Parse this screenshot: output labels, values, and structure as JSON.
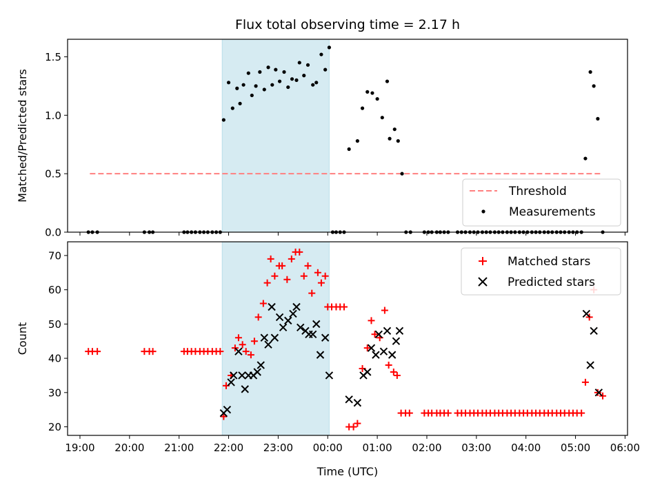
{
  "figure": {
    "title": "Flux total observing time = 2.17 h",
    "xlabel": "Time (UTC)",
    "x_tick_labels": [
      "19:00",
      "20:00",
      "21:00",
      "22:00",
      "23:00",
      "00:00",
      "01:00",
      "02:00",
      "03:00",
      "04:00",
      "05:00",
      "06:00"
    ],
    "shaded_interval_hours": [
      21.87,
      24.03
    ],
    "shade_color": "#add8e6"
  },
  "chart_data": [
    {
      "type": "scatter",
      "name": "ratio-panel",
      "ylabel": "Matched/Predicted stars",
      "ylim": [
        0,
        1.65
      ],
      "y_ticks": [
        0.0,
        0.5,
        1.0,
        1.5
      ],
      "y_tick_labels": [
        "0.0",
        "0.5",
        "1.0",
        "1.5"
      ],
      "xlim_hours": [
        18.75,
        30.05
      ],
      "legend_position": "lower-right",
      "threshold": {
        "label": "Threshold",
        "value": 0.5,
        "x_range_hours": [
          19.2,
          29.55
        ],
        "color": "#ff7f7f"
      },
      "measurements": {
        "label": "Measurements",
        "color": "#000000",
        "points": [
          [
            19.17,
            0
          ],
          [
            19.25,
            0
          ],
          [
            19.35,
            0
          ],
          [
            20.3,
            0
          ],
          [
            20.4,
            0
          ],
          [
            20.47,
            0
          ],
          [
            21.1,
            0
          ],
          [
            21.17,
            0
          ],
          [
            21.25,
            0
          ],
          [
            21.33,
            0
          ],
          [
            21.42,
            0
          ],
          [
            21.5,
            0
          ],
          [
            21.58,
            0
          ],
          [
            21.67,
            0
          ],
          [
            21.75,
            0
          ],
          [
            21.83,
            0
          ],
          [
            21.9,
            0.96
          ],
          [
            22.0,
            1.28
          ],
          [
            22.08,
            1.06
          ],
          [
            22.17,
            1.23
          ],
          [
            22.23,
            1.1
          ],
          [
            22.3,
            1.26
          ],
          [
            22.4,
            1.36
          ],
          [
            22.47,
            1.17
          ],
          [
            22.55,
            1.25
          ],
          [
            22.63,
            1.37
          ],
          [
            22.72,
            1.22
          ],
          [
            22.8,
            1.41
          ],
          [
            22.88,
            1.26
          ],
          [
            22.95,
            1.39
          ],
          [
            23.03,
            1.29
          ],
          [
            23.12,
            1.37
          ],
          [
            23.2,
            1.24
          ],
          [
            23.28,
            1.31
          ],
          [
            23.37,
            1.3
          ],
          [
            23.43,
            1.45
          ],
          [
            23.52,
            1.34
          ],
          [
            23.6,
            1.43
          ],
          [
            23.7,
            1.26
          ],
          [
            23.77,
            1.28
          ],
          [
            23.87,
            1.52
          ],
          [
            23.95,
            1.39
          ],
          [
            24.03,
            1.58
          ],
          [
            24.1,
            0
          ],
          [
            24.17,
            0
          ],
          [
            24.25,
            0
          ],
          [
            24.33,
            0
          ],
          [
            24.43,
            0.71
          ],
          [
            24.6,
            0.78
          ],
          [
            24.7,
            1.06
          ],
          [
            24.8,
            1.2
          ],
          [
            24.9,
            1.19
          ],
          [
            25.0,
            1.14
          ],
          [
            25.1,
            0.98
          ],
          [
            25.2,
            1.29
          ],
          [
            25.25,
            0.8
          ],
          [
            25.35,
            0.88
          ],
          [
            25.42,
            0.78
          ],
          [
            25.5,
            0.5
          ],
          [
            25.58,
            0
          ],
          [
            25.67,
            0
          ],
          [
            25.95,
            0
          ],
          [
            26.03,
            0
          ],
          [
            26.1,
            0
          ],
          [
            26.2,
            0
          ],
          [
            26.27,
            0
          ],
          [
            26.35,
            0
          ],
          [
            26.43,
            0
          ],
          [
            26.62,
            0
          ],
          [
            26.7,
            0
          ],
          [
            26.78,
            0
          ],
          [
            26.87,
            0
          ],
          [
            26.95,
            0
          ],
          [
            27.03,
            0
          ],
          [
            27.12,
            0
          ],
          [
            27.2,
            0
          ],
          [
            27.28,
            0
          ],
          [
            27.37,
            0
          ],
          [
            27.45,
            0
          ],
          [
            27.53,
            0
          ],
          [
            27.62,
            0
          ],
          [
            27.7,
            0
          ],
          [
            27.78,
            0
          ],
          [
            27.87,
            0
          ],
          [
            27.95,
            0
          ],
          [
            28.03,
            0
          ],
          [
            28.12,
            0
          ],
          [
            28.2,
            0
          ],
          [
            28.28,
            0
          ],
          [
            28.37,
            0
          ],
          [
            28.45,
            0
          ],
          [
            28.53,
            0
          ],
          [
            28.62,
            0
          ],
          [
            28.7,
            0
          ],
          [
            28.78,
            0
          ],
          [
            28.87,
            0
          ],
          [
            28.95,
            0
          ],
          [
            29.03,
            0
          ],
          [
            29.12,
            0
          ],
          [
            29.2,
            0.63
          ],
          [
            29.3,
            1.37
          ],
          [
            29.37,
            1.25
          ],
          [
            29.45,
            0.97
          ],
          [
            29.55,
            0
          ]
        ]
      }
    },
    {
      "type": "scatter",
      "name": "count-panel",
      "ylabel": "Count",
      "ylim": [
        17.5,
        74
      ],
      "y_ticks": [
        20,
        30,
        40,
        50,
        60,
        70
      ],
      "y_tick_labels": [
        "20",
        "30",
        "40",
        "50",
        "60",
        "70"
      ],
      "xlim_hours": [
        18.75,
        30.05
      ],
      "legend_position": "upper-right",
      "series": [
        {
          "name": "Matched stars",
          "marker": "plus",
          "color": "#ff0000",
          "points": [
            [
              19.17,
              42
            ],
            [
              19.25,
              42
            ],
            [
              19.35,
              42
            ],
            [
              20.3,
              42
            ],
            [
              20.4,
              42
            ],
            [
              20.47,
              42
            ],
            [
              21.1,
              42
            ],
            [
              21.17,
              42
            ],
            [
              21.25,
              42
            ],
            [
              21.33,
              42
            ],
            [
              21.42,
              42
            ],
            [
              21.5,
              42
            ],
            [
              21.58,
              42
            ],
            [
              21.67,
              42
            ],
            [
              21.75,
              42
            ],
            [
              21.83,
              42
            ],
            [
              21.9,
              23
            ],
            [
              21.95,
              32
            ],
            [
              22.05,
              35
            ],
            [
              22.13,
              43
            ],
            [
              22.2,
              46
            ],
            [
              22.28,
              44
            ],
            [
              22.35,
              42
            ],
            [
              22.45,
              41
            ],
            [
              22.52,
              45
            ],
            [
              22.6,
              52
            ],
            [
              22.7,
              56
            ],
            [
              22.78,
              62
            ],
            [
              22.85,
              69
            ],
            [
              22.93,
              64
            ],
            [
              23.02,
              67
            ],
            [
              23.08,
              67
            ],
            [
              23.18,
              63
            ],
            [
              23.27,
              69
            ],
            [
              23.35,
              71
            ],
            [
              23.43,
              71
            ],
            [
              23.52,
              64
            ],
            [
              23.6,
              67
            ],
            [
              23.68,
              59
            ],
            [
              23.8,
              65
            ],
            [
              23.87,
              62
            ],
            [
              23.95,
              64
            ],
            [
              24.0,
              55
            ],
            [
              24.08,
              55
            ],
            [
              24.17,
              55
            ],
            [
              24.25,
              55
            ],
            [
              24.33,
              55
            ],
            [
              24.43,
              20
            ],
            [
              24.52,
              20
            ],
            [
              24.6,
              21
            ],
            [
              24.7,
              37
            ],
            [
              24.8,
              43
            ],
            [
              24.88,
              51
            ],
            [
              24.95,
              47
            ],
            [
              25.05,
              46
            ],
            [
              25.15,
              54
            ],
            [
              25.23,
              38
            ],
            [
              25.33,
              36
            ],
            [
              25.4,
              35
            ],
            [
              25.48,
              24
            ],
            [
              25.57,
              24
            ],
            [
              25.65,
              24
            ],
            [
              25.95,
              24
            ],
            [
              26.03,
              24
            ],
            [
              26.1,
              24
            ],
            [
              26.2,
              24
            ],
            [
              26.27,
              24
            ],
            [
              26.35,
              24
            ],
            [
              26.43,
              24
            ],
            [
              26.62,
              24
            ],
            [
              26.7,
              24
            ],
            [
              26.78,
              24
            ],
            [
              26.87,
              24
            ],
            [
              26.95,
              24
            ],
            [
              27.03,
              24
            ],
            [
              27.12,
              24
            ],
            [
              27.2,
              24
            ],
            [
              27.28,
              24
            ],
            [
              27.37,
              24
            ],
            [
              27.45,
              24
            ],
            [
              27.53,
              24
            ],
            [
              27.62,
              24
            ],
            [
              27.7,
              24
            ],
            [
              27.78,
              24
            ],
            [
              27.87,
              24
            ],
            [
              27.95,
              24
            ],
            [
              28.03,
              24
            ],
            [
              28.12,
              24
            ],
            [
              28.2,
              24
            ],
            [
              28.28,
              24
            ],
            [
              28.37,
              24
            ],
            [
              28.45,
              24
            ],
            [
              28.53,
              24
            ],
            [
              28.62,
              24
            ],
            [
              28.7,
              24
            ],
            [
              28.78,
              24
            ],
            [
              28.87,
              24
            ],
            [
              28.95,
              24
            ],
            [
              29.03,
              24
            ],
            [
              29.12,
              24
            ],
            [
              29.2,
              33
            ],
            [
              29.28,
              52
            ],
            [
              29.37,
              60
            ],
            [
              29.45,
              30
            ],
            [
              29.55,
              29
            ]
          ]
        },
        {
          "name": "Predicted stars",
          "marker": "x",
          "color": "#000000",
          "points": [
            [
              21.9,
              24
            ],
            [
              21.97,
              25
            ],
            [
              22.05,
              33
            ],
            [
              22.1,
              35
            ],
            [
              22.2,
              42
            ],
            [
              22.27,
              35
            ],
            [
              22.33,
              31
            ],
            [
              22.4,
              35
            ],
            [
              22.5,
              35
            ],
            [
              22.58,
              36
            ],
            [
              22.65,
              38
            ],
            [
              22.72,
              46
            ],
            [
              22.8,
              44
            ],
            [
              22.87,
              55
            ],
            [
              22.93,
              46
            ],
            [
              23.03,
              52
            ],
            [
              23.1,
              49
            ],
            [
              23.2,
              51
            ],
            [
              23.3,
              53
            ],
            [
              23.37,
              55
            ],
            [
              23.45,
              49
            ],
            [
              23.55,
              48
            ],
            [
              23.62,
              47
            ],
            [
              23.7,
              47
            ],
            [
              23.77,
              50
            ],
            [
              23.85,
              41
            ],
            [
              23.95,
              46
            ],
            [
              24.03,
              35
            ],
            [
              24.43,
              28
            ],
            [
              24.6,
              27
            ],
            [
              24.72,
              35
            ],
            [
              24.8,
              36
            ],
            [
              24.88,
              43
            ],
            [
              24.97,
              41
            ],
            [
              25.03,
              47
            ],
            [
              25.13,
              42
            ],
            [
              25.2,
              48
            ],
            [
              25.3,
              41
            ],
            [
              25.38,
              45
            ],
            [
              25.45,
              48
            ],
            [
              29.22,
              53
            ],
            [
              29.3,
              38
            ],
            [
              29.37,
              48
            ],
            [
              29.47,
              30
            ]
          ]
        }
      ]
    }
  ]
}
